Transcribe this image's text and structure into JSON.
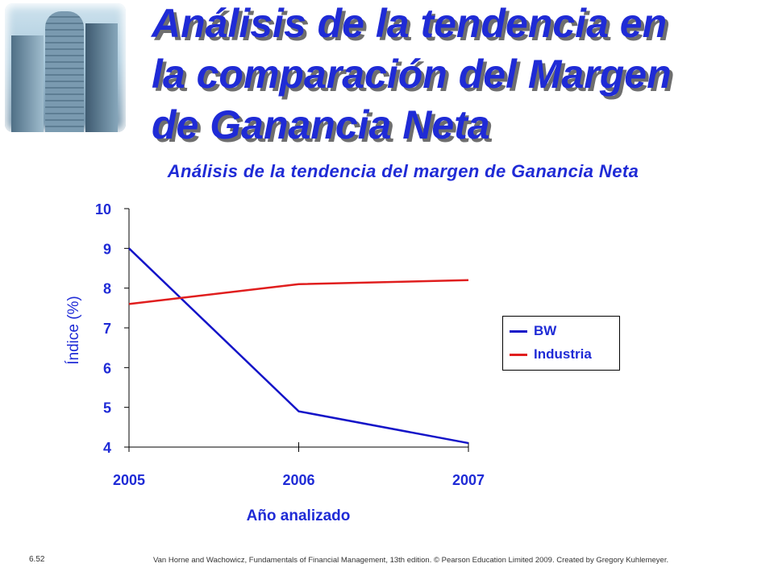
{
  "slide": {
    "title": "Análisis de la tendencia en\nla comparación del Margen\nde Ganancia Neta",
    "page_number": "6.52",
    "credit": "Van Horne and Wachowicz, Fundamentals of Financial Management, 13th edition. © Pearson Education Limited 2009. Created by Gregory Kuhlemeyer."
  },
  "chart_data": {
    "type": "line",
    "title": "Análisis de la tendencia del margen de Ganancia Neta",
    "xlabel": "Año analizado",
    "ylabel": "Índice (%)",
    "x": [
      "2005",
      "2006",
      "2007"
    ],
    "ylim": [
      4,
      10
    ],
    "yticks": [
      4,
      5,
      6,
      7,
      8,
      9,
      10
    ],
    "grid": false,
    "legend_position": "right",
    "series": [
      {
        "name": "BW",
        "values": [
          9.0,
          4.9,
          4.1
        ],
        "color": "#1414c8"
      },
      {
        "name": "Industria",
        "values": [
          7.6,
          8.1,
          8.2
        ],
        "color": "#e01e1e"
      }
    ],
    "axis_text_color": "#1f2bd6",
    "title_color": "#1f2bd6"
  }
}
